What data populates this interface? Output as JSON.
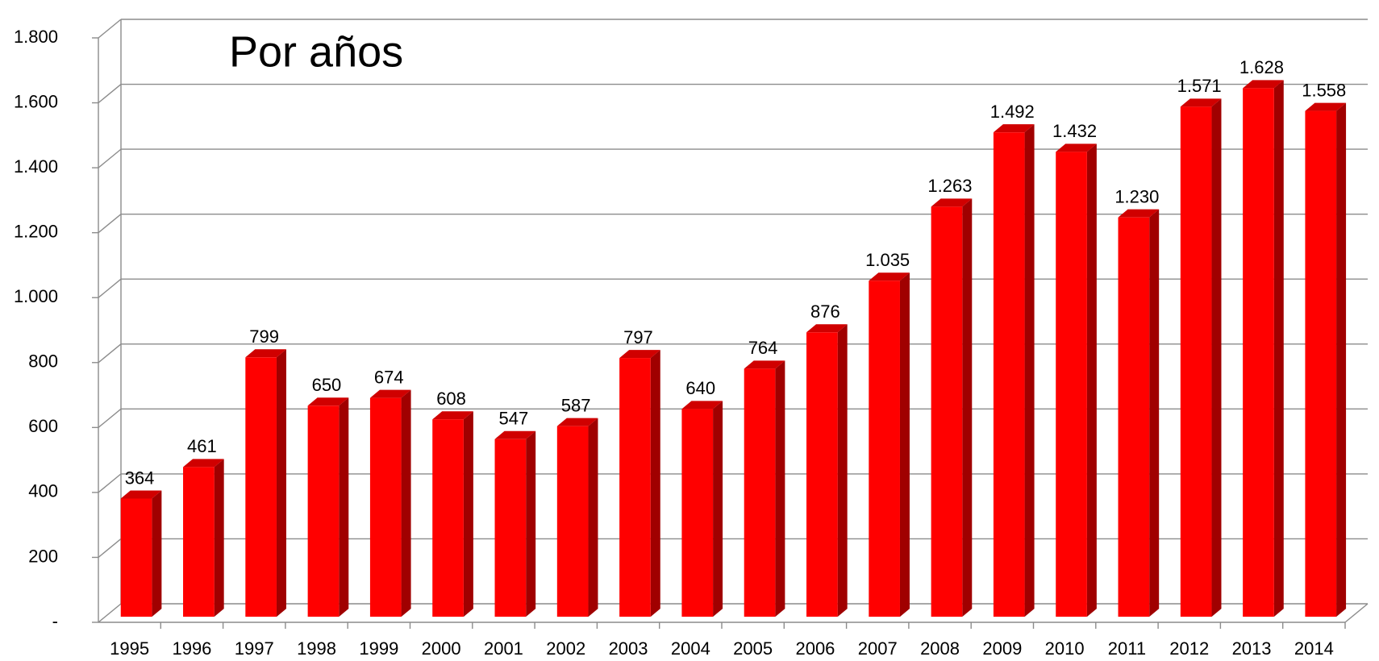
{
  "chart_data": {
    "type": "bar3d",
    "title": "Por años",
    "categories": [
      "1995",
      "1996",
      "1997",
      "1998",
      "1999",
      "2000",
      "2001",
      "2002",
      "2003",
      "2004",
      "2005",
      "2006",
      "2007",
      "2008",
      "2009",
      "2010",
      "2011",
      "2012",
      "2013",
      "2014"
    ],
    "values": [
      364,
      461,
      799,
      650,
      674,
      608,
      547,
      587,
      797,
      640,
      764,
      876,
      1035,
      1263,
      1492,
      1432,
      1230,
      1571,
      1628,
      1558
    ],
    "value_labels": [
      "364",
      "461",
      "799",
      "650",
      "674",
      "608",
      "547",
      "587",
      "797",
      "640",
      "764",
      "876",
      "1.035",
      "1.263",
      "1.492",
      "1.432",
      "1.230",
      "1.571",
      "1.628",
      "1.558"
    ],
    "color": "#ff0000",
    "ylim": [
      0,
      1800
    ],
    "yticks": [
      {
        "value": 0,
        "label": "-"
      },
      200,
      400,
      600,
      800,
      {
        "value": 1000,
        "label": "1.000"
      },
      {
        "value": 1200,
        "label": "1.200"
      },
      {
        "value": 1400,
        "label": "1.400"
      },
      {
        "value": 1600,
        "label": "1.600"
      },
      {
        "value": 1800,
        "label": "1.800"
      }
    ],
    "grid": true
  }
}
